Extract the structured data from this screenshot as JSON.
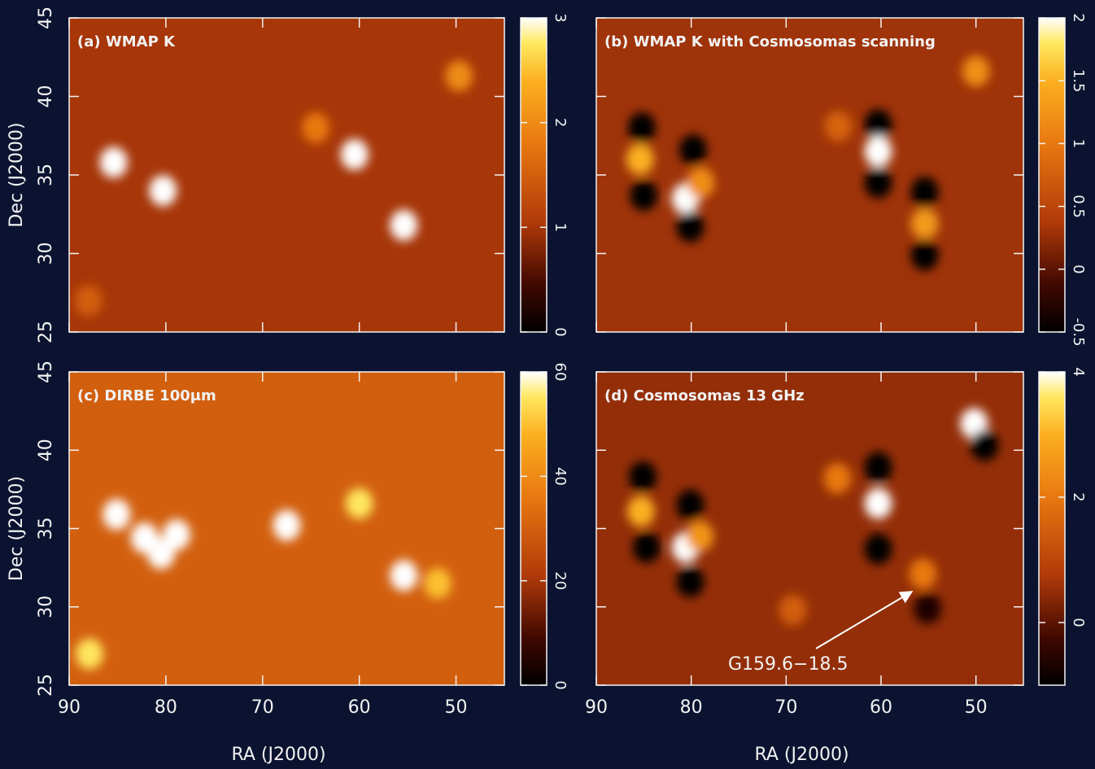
{
  "chart_data": [
    {
      "type": "heatmap",
      "title": "(a) WMAP K",
      "ylabel": "Dec (J2000)",
      "xlim": [
        90,
        45
      ],
      "ylim": [
        25,
        45
      ],
      "xticks": [
        90,
        80,
        70,
        60,
        50
      ],
      "yticks": [
        25,
        30,
        35,
        40,
        45
      ],
      "clim": [
        0,
        3
      ],
      "cticks": [
        0,
        1,
        2,
        3
      ],
      "background": 1,
      "sources": {
        "x": [
          85.4,
          80.3,
          60.5,
          55.4,
          49.7,
          64.5,
          88
        ],
        "y": [
          35.8,
          34,
          36.3,
          31.8,
          41.3,
          38,
          27
        ],
        "values": [
          3,
          3,
          3,
          3,
          2,
          1.8,
          1.5
        ]
      }
    },
    {
      "type": "heatmap",
      "title": "(b) WMAP K with Cosmosomas scanning",
      "xlim": [
        90,
        45
      ],
      "ylim": [
        25,
        45
      ],
      "xticks": [
        90,
        80,
        70,
        60,
        50
      ],
      "yticks": [
        25,
        30,
        35,
        40,
        45
      ],
      "clim": [
        -0.5,
        2
      ],
      "cticks": [
        -0.5,
        0,
        0.5,
        1,
        1.5,
        2
      ],
      "background": 0.3,
      "sources": {
        "x": [
          85.4,
          85.2,
          85,
          79.8,
          80.6,
          79,
          80.1,
          60.3,
          60.3,
          60.3,
          55.4,
          55.4,
          55.4,
          50,
          64.5
        ],
        "y": [
          36,
          38,
          33.7,
          36.6,
          33.5,
          34.5,
          31.7,
          38.2,
          36.5,
          34.5,
          33.9,
          31.9,
          29.9,
          41.6,
          38.1
        ],
        "values": [
          1.5,
          -0.5,
          -0.5,
          -0.5,
          2,
          1.2,
          -0.5,
          -0.5,
          2,
          -0.5,
          -0.5,
          1.3,
          -0.5,
          1.2,
          0.8
        ]
      }
    },
    {
      "type": "heatmap",
      "title": "(c) DIRBE 100μm",
      "xlabel": "RA (J2000)",
      "ylabel": "Dec (J2000)",
      "xlim": [
        90,
        45
      ],
      "ylim": [
        25,
        45
      ],
      "xticks": [
        90,
        80,
        70,
        60,
        50
      ],
      "yticks": [
        25,
        30,
        35,
        40,
        45
      ],
      "clim": [
        0,
        60
      ],
      "cticks": [
        0,
        20,
        40,
        60
      ],
      "background": 30,
      "sources": {
        "x": [
          85.1,
          82.2,
          80.5,
          78.9,
          67.5,
          60,
          55.4,
          51.9,
          87.9
        ],
        "y": [
          35.9,
          34.4,
          33.4,
          34.6,
          35.2,
          36.6,
          32,
          31.5,
          27
        ],
        "values": [
          60,
          60,
          60,
          60,
          60,
          55,
          60,
          50,
          55
        ]
      }
    },
    {
      "type": "heatmap",
      "title": "(d) Cosmosomas 13 GHz",
      "xlabel": "RA (J2000)",
      "annotation": "G159.6−18.5",
      "xlim": [
        90,
        45
      ],
      "ylim": [
        25,
        45
      ],
      "xticks": [
        90,
        80,
        70,
        60,
        50
      ],
      "yticks": [
        25,
        30,
        35,
        40,
        45
      ],
      "clim": [
        -1,
        4
      ],
      "cticks": [
        0,
        2,
        4
      ],
      "background": 0.5,
      "sources": {
        "x": [
          50.2,
          49.1,
          85.3,
          85.1,
          84.7,
          80.1,
          80.6,
          79.1,
          80.1,
          60.3,
          60.3,
          60.3,
          64.6,
          55.6,
          55.1,
          69.3
        ],
        "y": [
          41.7,
          40.3,
          36.1,
          38.3,
          33.8,
          36.5,
          33.8,
          34.5,
          31.6,
          38.9,
          36.6,
          33.7,
          38.2,
          32.1,
          29.9,
          29.8
        ],
        "values": [
          4,
          -1,
          3,
          -1,
          -1,
          -1,
          4,
          2.5,
          -1,
          -1,
          4,
          -1,
          2,
          2,
          -0.7,
          1.5
        ]
      }
    }
  ]
}
